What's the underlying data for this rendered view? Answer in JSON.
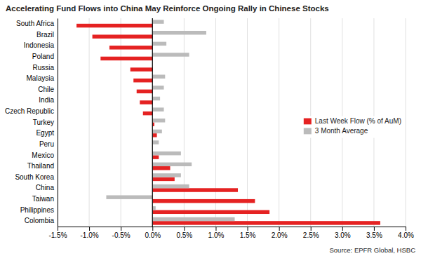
{
  "chart_data": {
    "type": "bar",
    "orientation": "horizontal",
    "title": "Accelerating Fund Flows into China May Reinforce Ongoing Rally in Chinese Stocks",
    "categories": [
      "Colombia",
      "Philippines",
      "Taiwan",
      "China",
      "South Korea",
      "Thailand",
      "Mexico",
      "Peru",
      "Egypt",
      "Turkey",
      "Czech Republic",
      "India",
      "Chile",
      "Malaysia",
      "Russia",
      "Poland",
      "Indonesia",
      "Brazil",
      "South Africa"
    ],
    "series": [
      {
        "name": "Last Week Flow (% of AuM)",
        "color": "#e52222",
        "values": [
          3.6,
          1.85,
          1.62,
          1.35,
          0.35,
          0.28,
          0.1,
          0.0,
          0.07,
          0.03,
          -0.15,
          -0.2,
          -0.25,
          -0.3,
          -0.35,
          -0.82,
          -0.68,
          -0.95,
          -1.2
        ]
      },
      {
        "name": "3 Month Average",
        "color": "#bbbbbb",
        "values": [
          1.3,
          0.05,
          -0.73,
          0.58,
          0.45,
          0.62,
          0.45,
          0.1,
          0.15,
          0.2,
          0.18,
          0.12,
          0.18,
          0.2,
          0.0,
          0.58,
          0.22,
          0.85,
          0.18
        ]
      }
    ],
    "xlim": [
      -1.5,
      4.0
    ],
    "xticks": [
      {
        "value": -1.5,
        "label": "-1.5%"
      },
      {
        "value": -1.0,
        "label": "-1.0%"
      },
      {
        "value": -0.5,
        "label": "-0.5%"
      },
      {
        "value": 0.0,
        "label": "0.0%"
      },
      {
        "value": 0.5,
        "label": "0.5%"
      },
      {
        "value": 1.0,
        "label": "1.0%"
      },
      {
        "value": 1.5,
        "label": "1.5%"
      },
      {
        "value": 2.0,
        "label": "2.0%"
      },
      {
        "value": 2.5,
        "label": "2.5%"
      },
      {
        "value": 3.0,
        "label": "3.0%"
      },
      {
        "value": 3.5,
        "label": "3.5%"
      },
      {
        "value": 4.0,
        "label": "4.0%"
      }
    ],
    "grid": true,
    "legend": "right",
    "annotations": [
      "Source: EPFR Global, HSBC"
    ]
  }
}
